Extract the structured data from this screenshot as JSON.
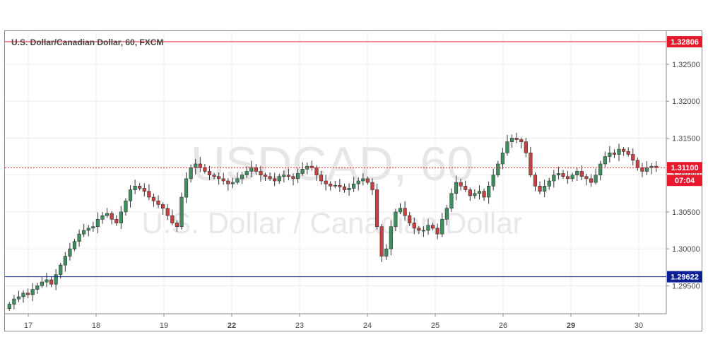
{
  "header": {
    "title": "U.S. Dollar/Canadian Dollar, 60, FXCM"
  },
  "watermark": {
    "symbol": "USDCAD, 60",
    "name": "U.S. Dollar / Canadian Dollar"
  },
  "colors": {
    "up": "#3d8f5f",
    "down": "#c94040",
    "resistance": "#e8192c",
    "support": "#0a1e96",
    "last_price": "#e8192c",
    "grid": "#ebebeb"
  },
  "badges": {
    "resistance": "1.32806",
    "support": "1.29622",
    "last_price": "1.31100",
    "countdown": "07:04"
  },
  "chart_data": {
    "type": "candlestick",
    "title": "U.S. Dollar/Canadian Dollar, 60, FXCM",
    "y_ticks": [
      "1.32500",
      "1.32000",
      "1.31500",
      "1.31000",
      "1.30500",
      "1.30000",
      "1.29500"
    ],
    "x_ticks": [
      {
        "label": "17",
        "bold": false
      },
      {
        "label": "18",
        "bold": false
      },
      {
        "label": "19",
        "bold": false
      },
      {
        "label": "22",
        "bold": true
      },
      {
        "label": "23",
        "bold": false
      },
      {
        "label": "24",
        "bold": false
      },
      {
        "label": "25",
        "bold": false
      },
      {
        "label": "26",
        "bold": false
      },
      {
        "label": "29",
        "bold": true
      },
      {
        "label": "30",
        "bold": false
      }
    ],
    "ylim": [
      1.2912,
      1.3295
    ],
    "horizontal_lines": [
      {
        "name": "resistance",
        "value": 1.32806
      },
      {
        "name": "support",
        "value": 1.29622
      },
      {
        "name": "last_price",
        "value": 1.311
      }
    ],
    "price_path": [
      1.2925,
      1.2932,
      1.2935,
      1.294,
      1.2938,
      1.2945,
      1.295,
      1.2955,
      1.2958,
      1.2952,
      1.2965,
      1.2978,
      1.299,
      1.3,
      1.301,
      1.302,
      1.3025,
      1.3028,
      1.303,
      1.304,
      1.3045,
      1.3048,
      1.304,
      1.3035,
      1.305,
      1.3065,
      1.308,
      1.3085,
      1.3082,
      1.3078,
      1.307,
      1.3065,
      1.306,
      1.3055,
      1.3045,
      1.3035,
      1.303,
      1.307,
      1.3095,
      1.311,
      1.3115,
      1.311,
      1.3105,
      1.31,
      1.3098,
      1.3095,
      1.3092,
      1.3088,
      1.309,
      1.3095,
      1.31,
      1.3105,
      1.311,
      1.3105,
      1.31,
      1.3098,
      1.3095,
      1.3092,
      1.3098,
      1.31,
      1.3098,
      1.3095,
      1.3102,
      1.3108,
      1.3112,
      1.311,
      1.31,
      1.3092,
      1.3088,
      1.3085,
      1.3086,
      1.3084,
      1.308,
      1.3082,
      1.3088,
      1.3092,
      1.3095,
      1.309,
      1.308,
      1.303,
      1.299,
      1.3,
      1.303,
      1.305,
      1.3055,
      1.3045,
      1.3035,
      1.3028,
      1.3025,
      1.3025,
      1.3032,
      1.3028,
      1.302,
      1.304,
      1.3055,
      1.3075,
      1.309,
      1.3085,
      1.308,
      1.3072,
      1.3075,
      1.3078,
      1.307,
      1.3085,
      1.31,
      1.3115,
      1.313,
      1.3145,
      1.315,
      1.3148,
      1.3145,
      1.313,
      1.31,
      1.3085,
      1.3078,
      1.3085,
      1.3092,
      1.31,
      1.3102,
      1.3098,
      1.3095,
      1.31,
      1.3105,
      1.3098,
      1.3095,
      1.309,
      1.31,
      1.3115,
      1.3125,
      1.313,
      1.3128,
      1.3135,
      1.3132,
      1.3128,
      1.312,
      1.311,
      1.3105,
      1.311,
      1.3112,
      1.311
    ]
  }
}
